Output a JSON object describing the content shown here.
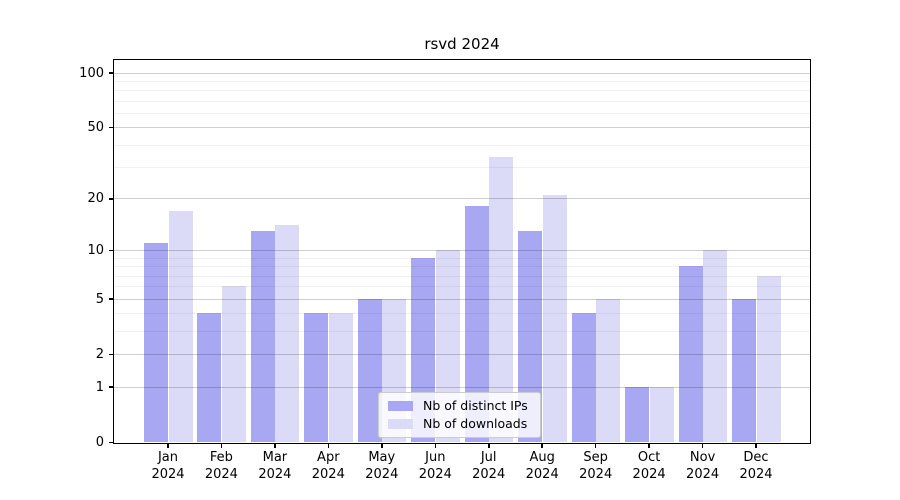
{
  "chart_data": {
    "type": "bar",
    "title": "rsvd 2024",
    "categories": [
      "Jan 2024",
      "Feb 2024",
      "Mar 2024",
      "Apr 2024",
      "May 2024",
      "Jun 2024",
      "Jul 2024",
      "Aug 2024",
      "Sep 2024",
      "Oct 2024",
      "Nov 2024",
      "Dec 2024"
    ],
    "series": [
      {
        "name": "Nb of distinct IPs",
        "color": "#a8a8f2",
        "values": [
          11,
          4,
          13,
          4,
          5,
          9,
          18,
          13,
          4,
          1,
          8,
          5
        ]
      },
      {
        "name": "Nb of downloads",
        "color": "#dbdbf7",
        "values": [
          17,
          6,
          14,
          4,
          5,
          10,
          34,
          21,
          5,
          1,
          10,
          7
        ]
      }
    ],
    "xlabel": "",
    "ylabel": "",
    "yscale": "log1p",
    "ylim": [
      0,
      117
    ],
    "yticks": [
      0,
      1,
      2,
      5,
      10,
      20,
      50,
      100
    ],
    "minor_gridlines": [
      3,
      4,
      6,
      7,
      8,
      9,
      30,
      40,
      60,
      70,
      80,
      90
    ],
    "grid": true,
    "legend_position": "lower center",
    "axis_color": "#000000",
    "major_grid_color": "#cbcbcb",
    "minor_grid_color": "#ececec"
  }
}
